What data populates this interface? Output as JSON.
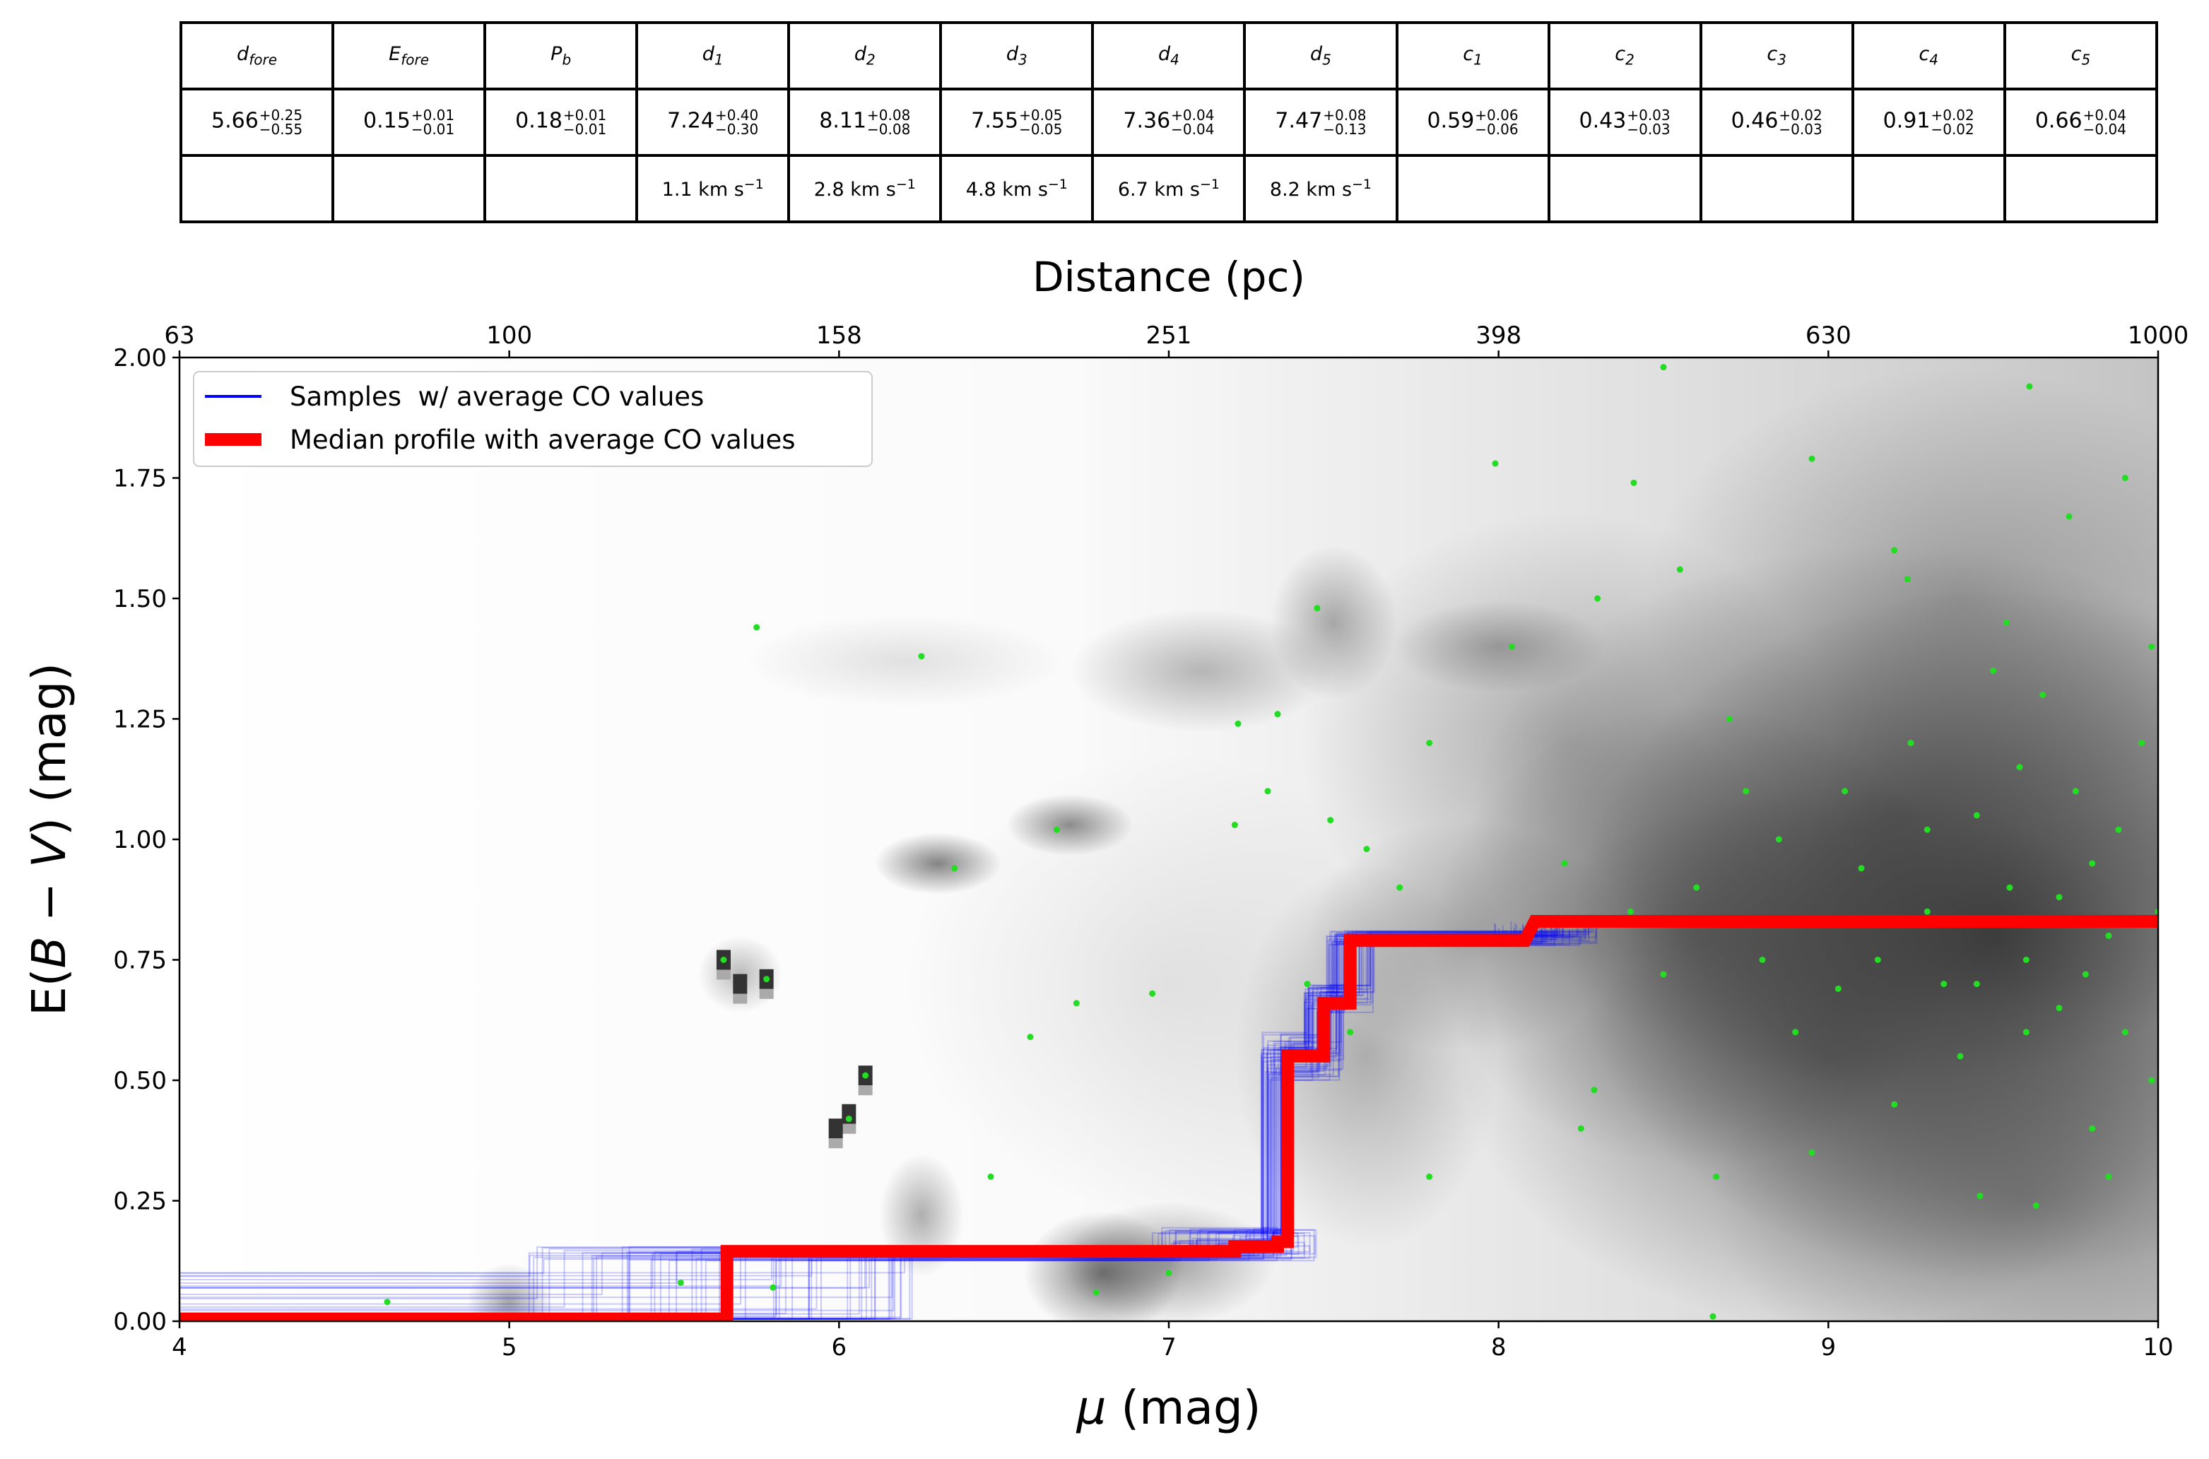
{
  "table": {
    "headers": [
      {
        "base": "d",
        "sub": "fore"
      },
      {
        "base": "E",
        "sub": "fore"
      },
      {
        "base": "P",
        "sub": "b"
      },
      {
        "base": "d",
        "sub": "1"
      },
      {
        "base": "d",
        "sub": "2"
      },
      {
        "base": "d",
        "sub": "3"
      },
      {
        "base": "d",
        "sub": "4"
      },
      {
        "base": "d",
        "sub": "5"
      },
      {
        "base": "c",
        "sub": "1"
      },
      {
        "base": "c",
        "sub": "2"
      },
      {
        "base": "c",
        "sub": "3"
      },
      {
        "base": "c",
        "sub": "4"
      },
      {
        "base": "c",
        "sub": "5"
      }
    ],
    "values": [
      {
        "v": "5.66",
        "p": "+0.25",
        "m": "−0.55"
      },
      {
        "v": "0.15",
        "p": "+0.01",
        "m": "−0.01"
      },
      {
        "v": "0.18",
        "p": "+0.01",
        "m": "−0.01"
      },
      {
        "v": "7.24",
        "p": "+0.40",
        "m": "−0.30"
      },
      {
        "v": "8.11",
        "p": "+0.08",
        "m": "−0.08"
      },
      {
        "v": "7.55",
        "p": "+0.05",
        "m": "−0.05"
      },
      {
        "v": "7.36",
        "p": "+0.04",
        "m": "−0.04"
      },
      {
        "v": "7.47",
        "p": "+0.08",
        "m": "−0.13"
      },
      {
        "v": "0.59",
        "p": "+0.06",
        "m": "−0.06"
      },
      {
        "v": "0.43",
        "p": "+0.03",
        "m": "−0.03"
      },
      {
        "v": "0.46",
        "p": "+0.02",
        "m": "−0.03"
      },
      {
        "v": "0.91",
        "p": "+0.02",
        "m": "−0.02"
      },
      {
        "v": "0.66",
        "p": "+0.04",
        "m": "−0.04"
      }
    ],
    "velocities": [
      "",
      "",
      "",
      "1.1 km s",
      "2.8 km s",
      "4.8 km s",
      "6.7 km s",
      "8.2 km s",
      "",
      "",
      "",
      "",
      ""
    ],
    "velocity_exponent": "−1"
  },
  "chart_data": {
    "type": "line",
    "xlabel": "μ (mag)",
    "ylabel": "E(B − V) (mag)",
    "top_xlabel": "Distance (pc)",
    "xlim": [
      4,
      10
    ],
    "ylim": [
      0,
      2
    ],
    "xticks": [
      4,
      5,
      6,
      7,
      8,
      9,
      10
    ],
    "yticks": [
      "0.00",
      "0.25",
      "0.50",
      "0.75",
      "1.00",
      "1.25",
      "1.50",
      "1.75",
      "2.00"
    ],
    "top_ticks": [
      {
        "mu": 4,
        "label": "63"
      },
      {
        "mu": 5,
        "label": "100"
      },
      {
        "mu": 6,
        "label": "158"
      },
      {
        "mu": 7,
        "label": "251"
      },
      {
        "mu": 8,
        "label": "398"
      },
      {
        "mu": 9,
        "label": "630"
      },
      {
        "mu": 10,
        "label": "1000"
      }
    ],
    "grid": false,
    "legend": {
      "placement": "top-left",
      "entries": [
        {
          "label": "Samples  w/ average CO values",
          "color": "#0000ff"
        },
        {
          "label": "Median profile with average CO values",
          "color": "#ff0000"
        }
      ]
    },
    "median_profile": {
      "x": [
        4,
        5.66,
        5.66,
        7.2,
        7.2,
        7.33,
        7.33,
        7.36,
        7.36,
        7.47,
        7.47,
        7.55,
        7.55,
        8.08,
        8.11,
        10
      ],
      "y": [
        0.005,
        0.005,
        0.145,
        0.145,
        0.155,
        0.155,
        0.165,
        0.165,
        0.55,
        0.55,
        0.66,
        0.66,
        0.79,
        0.79,
        0.83,
        0.83
      ]
    },
    "density_background": [
      {
        "mu": 9.5,
        "E": 0.8,
        "smu": 0.8,
        "sE": 0.45,
        "w": 0.75
      },
      {
        "mu": 9.0,
        "E": 0.55,
        "smu": 0.7,
        "sE": 0.35,
        "w": 0.5
      },
      {
        "mu": 9.2,
        "E": 1.05,
        "smu": 0.8,
        "sE": 0.35,
        "w": 0.5
      },
      {
        "mu": 8.6,
        "E": 0.8,
        "smu": 0.5,
        "sE": 0.3,
        "w": 0.45
      },
      {
        "mu": 8.2,
        "E": 1.2,
        "smu": 0.5,
        "sE": 0.3,
        "w": 0.3
      },
      {
        "mu": 9.6,
        "E": 0.25,
        "smu": 0.6,
        "sE": 0.25,
        "w": 0.35
      },
      {
        "mu": 9.4,
        "E": 1.5,
        "smu": 0.6,
        "sE": 0.3,
        "w": 0.3
      },
      {
        "mu": 8.0,
        "E": 1.4,
        "smu": 0.2,
        "sE": 0.06,
        "w": 0.3
      },
      {
        "mu": 7.5,
        "E": 1.45,
        "smu": 0.12,
        "sE": 0.1,
        "w": 0.35
      },
      {
        "mu": 7.1,
        "E": 1.35,
        "smu": 0.25,
        "sE": 0.08,
        "w": 0.3
      },
      {
        "mu": 6.3,
        "E": 0.95,
        "smu": 0.12,
        "sE": 0.04,
        "w": 0.55
      },
      {
        "mu": 6.7,
        "E": 1.03,
        "smu": 0.12,
        "sE": 0.04,
        "w": 0.5
      },
      {
        "mu": 6.8,
        "E": 0.1,
        "smu": 0.15,
        "sE": 0.08,
        "w": 0.6
      },
      {
        "mu": 7.0,
        "E": 0.12,
        "smu": 0.2,
        "sE": 0.08,
        "w": 0.4
      },
      {
        "mu": 6.25,
        "E": 0.22,
        "smu": 0.08,
        "sE": 0.08,
        "w": 0.35
      },
      {
        "mu": 6.2,
        "E": 1.37,
        "smu": 0.3,
        "sE": 0.06,
        "w": 0.12
      },
      {
        "mu": 5.0,
        "E": 0.04,
        "smu": 0.08,
        "sE": 0.05,
        "w": 0.4
      },
      {
        "mu": 7.6,
        "E": 0.55,
        "smu": 0.25,
        "sE": 0.25,
        "w": 0.3
      },
      {
        "mu": 7.9,
        "E": 0.8,
        "smu": 0.3,
        "sE": 0.15,
        "w": 0.3
      },
      {
        "mu": 7.0,
        "E": 0.7,
        "smu": 0.5,
        "sE": 0.3,
        "w": 0.1
      },
      {
        "mu": 5.7,
        "E": 0.72,
        "smu": 0.08,
        "sE": 0.05,
        "w": 0.3
      }
    ],
    "density_pixels": [
      [
        5.65,
        0.75
      ],
      [
        5.78,
        0.71
      ],
      [
        6.08,
        0.51
      ],
      [
        6.03,
        0.43
      ],
      [
        5.99,
        0.4
      ],
      [
        5.7,
        0.7
      ]
    ],
    "stars": [
      [
        5.65,
        0.75
      ],
      [
        5.78,
        0.71
      ],
      [
        6.08,
        0.51
      ],
      [
        6.03,
        0.42
      ],
      [
        5.75,
        1.44
      ],
      [
        6.25,
        1.38
      ],
      [
        7.99,
        1.78
      ],
      [
        8.5,
        1.98
      ],
      [
        9.61,
        1.94
      ],
      [
        7.45,
        1.48
      ],
      [
        4.63,
        0.04
      ],
      [
        6.46,
        0.3
      ],
      [
        6.58,
        0.59
      ],
      [
        6.66,
        1.02
      ],
      [
        7.21,
        1.24
      ],
      [
        7.33,
        1.26
      ],
      [
        7.49,
        1.04
      ],
      [
        7.79,
        1.2
      ],
      [
        8.04,
        1.4
      ],
      [
        8.41,
        1.74
      ],
      [
        8.95,
        1.79
      ],
      [
        9.2,
        1.6
      ],
      [
        9.24,
        1.54
      ],
      [
        9.54,
        1.45
      ],
      [
        9.73,
        1.67
      ],
      [
        7.79,
        0.3
      ],
      [
        8.25,
        0.4
      ],
      [
        8.29,
        0.48
      ],
      [
        8.66,
        0.3
      ],
      [
        9.03,
        0.69
      ],
      [
        9.46,
        0.26
      ],
      [
        9.63,
        0.24
      ],
      [
        8.65,
        0.01
      ],
      [
        6.72,
        0.66
      ],
      [
        6.95,
        0.68
      ],
      [
        6.35,
        0.94
      ],
      [
        7.0,
        0.1
      ],
      [
        6.78,
        0.06
      ],
      [
        5.52,
        0.08
      ],
      [
        5.8,
        0.07
      ],
      [
        7.3,
        1.1
      ],
      [
        7.2,
        1.03
      ],
      [
        7.42,
        0.7
      ],
      [
        7.55,
        0.6
      ],
      [
        8.3,
        1.5
      ],
      [
        8.55,
        1.56
      ],
      [
        8.7,
        1.25
      ],
      [
        8.85,
        1.0
      ],
      [
        8.9,
        0.6
      ],
      [
        9.1,
        0.94
      ],
      [
        9.3,
        0.85
      ],
      [
        9.35,
        0.7
      ],
      [
        9.45,
        1.05
      ],
      [
        9.55,
        0.9
      ],
      [
        9.6,
        0.75
      ],
      [
        9.7,
        0.65
      ],
      [
        9.75,
        1.1
      ],
      [
        9.8,
        0.95
      ],
      [
        9.85,
        0.8
      ],
      [
        9.9,
        0.6
      ],
      [
        9.95,
        1.2
      ],
      [
        9.98,
        0.5
      ],
      [
        9.5,
        1.35
      ],
      [
        9.25,
        1.2
      ],
      [
        9.15,
        0.75
      ],
      [
        9.05,
        1.1
      ],
      [
        8.8,
        0.75
      ],
      [
        8.6,
        0.9
      ],
      [
        8.4,
        0.85
      ],
      [
        8.2,
        0.95
      ],
      [
        9.65,
        1.3
      ],
      [
        9.8,
        0.4
      ],
      [
        9.9,
        1.75
      ],
      [
        9.4,
        0.55
      ],
      [
        9.2,
        0.45
      ],
      [
        8.95,
        0.35
      ],
      [
        9.6,
        0.6
      ],
      [
        9.78,
        0.72
      ],
      [
        9.88,
        1.02
      ],
      [
        9.58,
        1.15
      ],
      [
        10.0,
        0.85
      ],
      [
        9.45,
        0.7
      ],
      [
        9.7,
        0.88
      ],
      [
        9.3,
        1.02
      ],
      [
        8.75,
        1.1
      ],
      [
        8.5,
        0.72
      ],
      [
        9.98,
        1.4
      ],
      [
        9.85,
        0.3
      ],
      [
        7.7,
        0.9
      ],
      [
        7.6,
        0.98
      ]
    ]
  }
}
